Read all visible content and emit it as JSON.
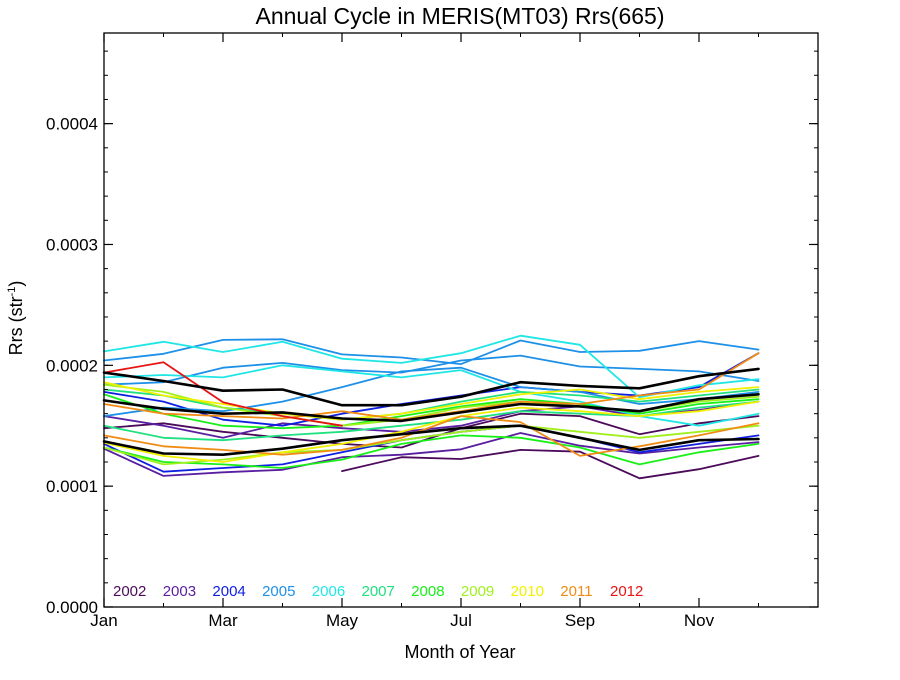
{
  "chart_data": {
    "type": "line",
    "title": "Annual Cycle in MERIS(MT03) Rrs(665)",
    "xlabel": "Month of Year",
    "ylabel": "Rrs (str",
    "ylabel_sup": "-1",
    "ylabel_close": ")",
    "x_range": [
      1,
      13
    ],
    "ylim": [
      0,
      0.000475
    ],
    "x_ticks": [
      {
        "value": 1,
        "label": "Jan"
      },
      {
        "value": 3,
        "label": "Mar"
      },
      {
        "value": 5,
        "label": "May"
      },
      {
        "value": 7,
        "label": "Jul"
      },
      {
        "value": 9,
        "label": "Sep"
      },
      {
        "value": 11,
        "label": "Nov"
      }
    ],
    "y_ticks": [
      {
        "value": 0,
        "label": "0.0000"
      },
      {
        "value": 0.0001,
        "label": "0.0001"
      },
      {
        "value": 0.0002,
        "label": "0.0002"
      },
      {
        "value": 0.0003,
        "label": "0.0003"
      },
      {
        "value": 0.0004,
        "label": "0.0004"
      }
    ],
    "grid": false,
    "legend_position": "bottom-left",
    "x": [
      1,
      2,
      3,
      4,
      5,
      6,
      7,
      8,
      9,
      10,
      11,
      12
    ],
    "series": [
      {
        "name": "2002",
        "color": "#4b0a5a",
        "values": [
          null,
          null,
          null,
          null,
          0.0001125,
          0.000124,
          0.0001225,
          0.00013,
          0.0001285,
          0.0001065,
          0.000114,
          0.000125
        ],
        "show_in_legend": true
      },
      {
        "name": "",
        "color": "#4b0a5a",
        "values": [
          0.000148,
          0.000152,
          0.000145,
          0.00014,
          0.000135,
          0.000132,
          0.000148,
          0.00016,
          0.000158,
          0.000143,
          0.000152,
          0.000158
        ],
        "show_in_legend": false
      },
      {
        "name": "2003",
        "color": "#5a1ea0",
        "values": [
          0.000131,
          0.0001085,
          0.0001115,
          0.0001135,
          0.000124,
          0.000126,
          0.0001305,
          0.000144,
          0.0001335,
          0.000127,
          0.000132,
          0.0001365
        ],
        "show_in_legend": true
      },
      {
        "name": "",
        "color": "#5a1ea0",
        "values": [
          0.000158,
          0.00015,
          0.00014,
          0.000152,
          0.000148,
          0.000145,
          0.00015,
          0.000162,
          0.000166,
          0.000158,
          0.000163,
          0.00017
        ],
        "show_in_legend": false
      },
      {
        "name": "2004",
        "color": "#1020e0",
        "values": [
          0.000178,
          0.00017,
          0.000155,
          0.00015,
          0.00016,
          0.000168,
          0.000175,
          0.000182,
          0.000178,
          0.000175,
          0.000182,
          0.00021
        ],
        "show_in_legend": true
      },
      {
        "name": "",
        "color": "#1020e0",
        "values": [
          0.000135,
          0.000112,
          0.000115,
          0.000118,
          0.000128,
          0.000138,
          0.000145,
          0.00015,
          0.00014,
          0.000128,
          0.000135,
          0.000142
        ],
        "show_in_legend": false
      },
      {
        "name": "2005",
        "color": "#1e90e8",
        "values": [
          0.000204,
          0.0002095,
          0.000221,
          0.0002215,
          0.000209,
          0.0002065,
          0.000201,
          0.0002205,
          0.000211,
          0.000212,
          0.00022,
          0.000213
        ],
        "show_in_legend": true
      },
      {
        "name": "",
        "color": "#1e90e8",
        "values": [
          0.000184,
          0.000186,
          0.000198,
          0.000202,
          0.000196,
          0.000194,
          0.000204,
          0.000208,
          0.000199,
          0.000197,
          0.000195,
          0.000187
        ],
        "show_in_legend": false
      },
      {
        "name": "",
        "color": "#1e90e8",
        "values": [
          0.000158,
          0.000165,
          0.000162,
          0.00017,
          0.000182,
          0.000195,
          0.000198,
          0.000182,
          0.000178,
          0.000168,
          0.000172,
          0.000178
        ],
        "show_in_legend": false
      },
      {
        "name": "2006",
        "color": "#20e6e6",
        "values": [
          0.0002115,
          0.0002195,
          0.000211,
          0.0002195,
          0.0002055,
          0.000202,
          0.00021,
          0.0002245,
          0.000217,
          0.0001735,
          0.0001835,
          0.0001885
        ],
        "show_in_legend": true
      },
      {
        "name": "",
        "color": "#20e6e6",
        "values": [
          0.00019,
          0.000192,
          0.00019,
          0.0002,
          0.000195,
          0.00019,
          0.000196,
          0.000178,
          0.00017,
          0.000158,
          0.00015,
          0.00016
        ],
        "show_in_legend": false
      },
      {
        "name": "2007",
        "color": "#20e080",
        "values": [
          0.00018,
          0.000175,
          0.000165,
          0.00016,
          0.000155,
          0.00016,
          0.00017,
          0.000178,
          0.000175,
          0.00017,
          0.000175,
          0.00018
        ],
        "show_in_legend": true
      },
      {
        "name": "",
        "color": "#20e080",
        "values": [
          0.00015,
          0.00014,
          0.000138,
          0.000142,
          0.000145,
          0.00015,
          0.000155,
          0.000162,
          0.00016,
          0.000158,
          0.000165,
          0.00017
        ],
        "show_in_legend": false
      },
      {
        "name": "2008",
        "color": "#18f018",
        "values": [
          0.000176,
          0.00016,
          0.00015,
          0.000148,
          0.00015,
          0.000158,
          0.000166,
          0.000172,
          0.000168,
          0.00016,
          0.000168,
          0.000172
        ],
        "show_in_legend": true
      },
      {
        "name": "",
        "color": "#18f018",
        "values": [
          0.000132,
          0.00012,
          0.000118,
          0.000115,
          0.000122,
          0.000135,
          0.000142,
          0.00014,
          0.000132,
          0.000118,
          0.000128,
          0.000135
        ],
        "show_in_legend": false
      },
      {
        "name": "2009",
        "color": "#a0f01e",
        "values": [
          0.000184,
          0.000178,
          0.000165,
          0.000158,
          0.00015,
          0.000155,
          0.000165,
          0.00017,
          0.000166,
          0.000162,
          0.00017,
          0.000174
        ],
        "show_in_legend": true
      },
      {
        "name": "",
        "color": "#a0f01e",
        "values": [
          0.000132,
          0.000118,
          0.000122,
          0.000128,
          0.00013,
          0.000138,
          0.000145,
          0.00015,
          0.000145,
          0.00014,
          0.000145,
          0.00015
        ],
        "show_in_legend": false
      },
      {
        "name": "2010",
        "color": "#f0f000",
        "values": [
          0.000186,
          0.000175,
          0.000168,
          0.00016,
          0.000155,
          0.00016,
          0.000168,
          0.000176,
          0.00018,
          0.000172,
          0.000178,
          0.000182
        ],
        "show_in_legend": true
      },
      {
        "name": "",
        "color": "#f0f000",
        "values": [
          0.000136,
          0.000125,
          0.00012,
          0.000128,
          0.000135,
          0.000145,
          0.000158,
          0.000165,
          0.000162,
          0.000158,
          0.000162,
          0.00017
        ],
        "show_in_legend": false
      },
      {
        "name": "2011",
        "color": "#f08c14",
        "values": [
          0.000142,
          0.000133,
          0.00013,
          0.000126,
          0.00013,
          0.00014,
          0.000158,
          0.000153,
          0.000125,
          0.000133,
          0.000142,
          0.000152
        ],
        "show_in_legend": true
      },
      {
        "name": "",
        "color": "#f08c14",
        "values": [
          0.000168,
          0.00016,
          0.000158,
          0.000156,
          0.000162,
          0.000155,
          0.000162,
          0.00017,
          0.000168,
          0.000175,
          0.00018,
          0.00021
        ],
        "show_in_legend": false
      },
      {
        "name": "2012",
        "color": "#e61414",
        "values": [
          0.000194,
          0.0002025,
          0.0001695,
          0.000158,
          0.00015,
          null,
          null,
          null,
          null,
          null,
          null,
          null
        ],
        "show_in_legend": true
      },
      {
        "name": "",
        "color": "#000000",
        "values": [
          0.000194,
          0.000187,
          0.000179,
          0.00018,
          0.000167,
          0.000167,
          0.000174,
          0.000186,
          0.000183,
          0.000181,
          0.000191,
          0.000197
        ],
        "show_in_legend": false
      },
      {
        "name": "",
        "color": "#000000",
        "values": [
          0.000171,
          0.000164,
          0.00016,
          0.000161,
          0.000156,
          0.000154,
          0.000161,
          0.000168,
          0.000166,
          0.000162,
          0.000172,
          0.000176
        ],
        "show_in_legend": false
      },
      {
        "name": "",
        "color": "#000000",
        "values": [
          0.000137,
          0.000127,
          0.000126,
          0.000131,
          0.000138,
          0.000143,
          0.000148,
          0.00015,
          0.00014,
          0.00013,
          0.000138,
          0.000139
        ],
        "show_in_legend": false
      }
    ]
  }
}
